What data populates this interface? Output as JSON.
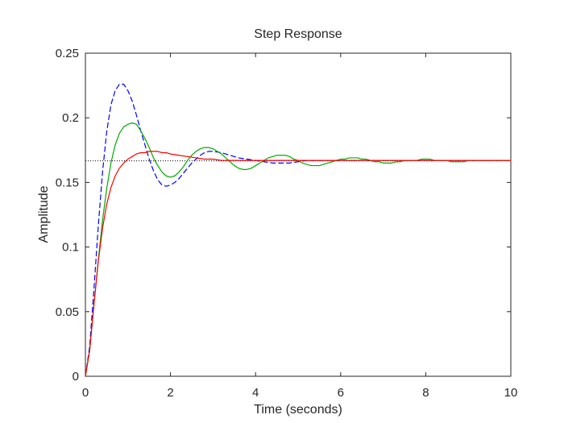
{
  "chart_data": {
    "type": "line",
    "title": "Step Response",
    "xlabel": "Time (seconds)",
    "ylabel": "Amplitude",
    "xlim": [
      0,
      10
    ],
    "ylim": [
      0,
      0.25
    ],
    "xticks": [
      0,
      2,
      4,
      6,
      8,
      10
    ],
    "yticks": [
      0,
      0.05,
      0.1,
      0.15,
      0.2,
      0.25
    ],
    "xtick_labels": [
      "0",
      "2",
      "4",
      "6",
      "8",
      "10"
    ],
    "ytick_labels": [
      "0",
      "0.05",
      "0.1",
      "0.15",
      "0.2",
      "0.25"
    ],
    "grid": false,
    "legend": false,
    "reference_line": {
      "y": 0.1667,
      "color": "#000000",
      "style": "dotted"
    },
    "series": [
      {
        "color": "#0000ff",
        "style": "dashed",
        "x": [
          0,
          0.1,
          0.2,
          0.3,
          0.4,
          0.5,
          0.6,
          0.7,
          0.8,
          0.9,
          1.0,
          1.1,
          1.2,
          1.3,
          1.4,
          1.5,
          1.6,
          1.7,
          1.8,
          1.9,
          2.0,
          2.1,
          2.2,
          2.3,
          2.4,
          2.5,
          2.6,
          2.7,
          2.8,
          2.9,
          3.0,
          3.2,
          3.4,
          3.6,
          3.8,
          4.0,
          4.2,
          4.4,
          4.6,
          4.8,
          5.0,
          5.2,
          5.4,
          5.6,
          5.8,
          6.0,
          6.2,
          6.4,
          6.6,
          6.8,
          7.0,
          7.4,
          7.8,
          8.2,
          8.6,
          9.0,
          9.5,
          10.0
        ],
        "y": [
          0.0,
          0.023,
          0.067,
          0.115,
          0.157,
          0.189,
          0.21,
          0.221,
          0.226,
          0.226,
          0.221,
          0.213,
          0.202,
          0.19,
          0.179,
          0.168,
          0.159,
          0.152,
          0.148,
          0.147,
          0.148,
          0.15,
          0.153,
          0.157,
          0.161,
          0.165,
          0.168,
          0.171,
          0.173,
          0.174,
          0.174,
          0.173,
          0.171,
          0.169,
          0.168,
          0.167,
          0.166,
          0.165,
          0.165,
          0.165,
          0.166,
          0.167,
          0.167,
          0.167,
          0.167,
          0.167,
          0.167,
          0.167,
          0.167,
          0.167,
          0.167,
          0.167,
          0.167,
          0.167,
          0.167,
          0.167,
          0.167,
          0.167
        ]
      },
      {
        "color": "#00aa00",
        "style": "solid",
        "x": [
          0,
          0.1,
          0.2,
          0.3,
          0.4,
          0.5,
          0.6,
          0.7,
          0.8,
          0.9,
          1.0,
          1.1,
          1.2,
          1.3,
          1.4,
          1.5,
          1.6,
          1.7,
          1.8,
          1.9,
          2.0,
          2.1,
          2.2,
          2.3,
          2.4,
          2.5,
          2.6,
          2.7,
          2.8,
          2.9,
          3.0,
          3.1,
          3.2,
          3.3,
          3.4,
          3.5,
          3.6,
          3.7,
          3.8,
          3.9,
          4.0,
          4.1,
          4.2,
          4.3,
          4.4,
          4.5,
          4.6,
          4.7,
          4.8,
          4.9,
          5.0,
          5.1,
          5.2,
          5.3,
          5.4,
          5.5,
          5.6,
          5.7,
          5.8,
          5.9,
          6.0,
          6.1,
          6.2,
          6.3,
          6.4,
          6.5,
          6.6,
          6.7,
          6.8,
          6.9,
          7.0,
          7.1,
          7.2,
          7.3,
          7.4,
          7.5,
          7.6,
          7.7,
          7.8,
          7.9,
          8.0,
          8.1,
          8.2,
          8.3,
          8.4,
          8.5,
          8.6,
          8.7,
          8.8,
          8.9,
          9.0,
          9.1,
          9.2,
          9.3,
          9.4,
          9.5,
          9.6,
          9.7,
          9.8,
          9.9,
          10.0
        ],
        "y": [
          0.0,
          0.02,
          0.055,
          0.089,
          0.12,
          0.145,
          0.165,
          0.179,
          0.188,
          0.193,
          0.195,
          0.196,
          0.195,
          0.19,
          0.184,
          0.177,
          0.169,
          0.163,
          0.158,
          0.155,
          0.154,
          0.155,
          0.158,
          0.162,
          0.167,
          0.171,
          0.174,
          0.176,
          0.177,
          0.177,
          0.176,
          0.174,
          0.172,
          0.169,
          0.166,
          0.163,
          0.161,
          0.16,
          0.16,
          0.161,
          0.163,
          0.165,
          0.167,
          0.169,
          0.17,
          0.171,
          0.171,
          0.171,
          0.17,
          0.168,
          0.167,
          0.165,
          0.164,
          0.163,
          0.163,
          0.163,
          0.164,
          0.165,
          0.166,
          0.167,
          0.168,
          0.168,
          0.169,
          0.169,
          0.169,
          0.168,
          0.168,
          0.167,
          0.166,
          0.166,
          0.165,
          0.165,
          0.165,
          0.166,
          0.166,
          0.167,
          0.167,
          0.167,
          0.167,
          0.168,
          0.168,
          0.168,
          0.167,
          0.167,
          0.167,
          0.167,
          0.166,
          0.166,
          0.166,
          0.166,
          0.167,
          0.167,
          0.167,
          0.167,
          0.167,
          0.167,
          0.167,
          0.167,
          0.167,
          0.167,
          0.167
        ]
      },
      {
        "color": "#ff0000",
        "style": "solid",
        "x": [
          0,
          0.1,
          0.2,
          0.3,
          0.4,
          0.5,
          0.6,
          0.7,
          0.8,
          0.9,
          1.0,
          1.1,
          1.2,
          1.3,
          1.4,
          1.5,
          1.6,
          1.7,
          1.8,
          1.9,
          2.0,
          2.2,
          2.4,
          2.6,
          2.8,
          3.0,
          3.2,
          3.6,
          4.0,
          4.5,
          5.0,
          6.0,
          7.0,
          8.0,
          9.0,
          10.0
        ],
        "y": [
          0.0,
          0.02,
          0.055,
          0.088,
          0.114,
          0.133,
          0.146,
          0.155,
          0.161,
          0.165,
          0.168,
          0.17,
          0.172,
          0.173,
          0.173,
          0.174,
          0.174,
          0.174,
          0.173,
          0.173,
          0.172,
          0.171,
          0.17,
          0.169,
          0.168,
          0.168,
          0.167,
          0.167,
          0.167,
          0.167,
          0.167,
          0.167,
          0.167,
          0.167,
          0.167,
          0.167
        ]
      }
    ]
  }
}
